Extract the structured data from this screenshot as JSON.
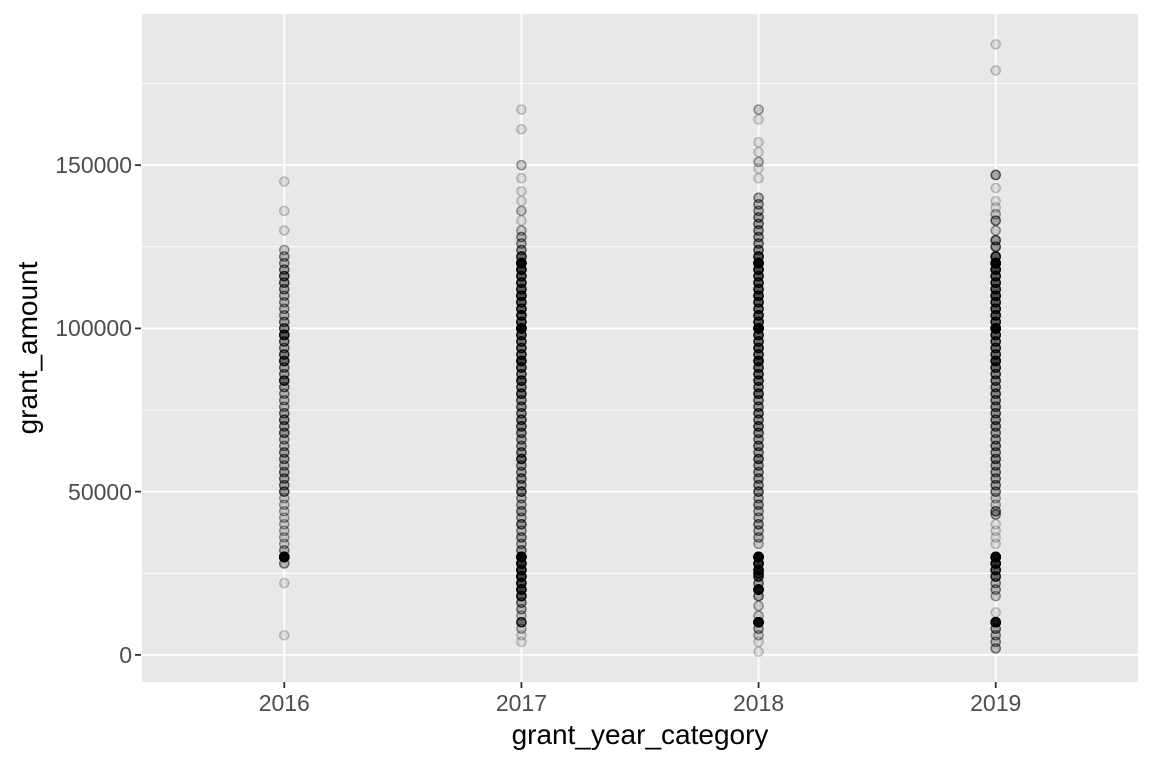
{
  "chart_data": {
    "type": "scatter",
    "subtype": "strip-plot-overplotted",
    "title": "",
    "xlabel": "grant_year_category",
    "ylabel": "grant_amount",
    "categories": [
      "2016",
      "2017",
      "2018",
      "2019"
    ],
    "y_ticks": [
      0,
      50000,
      100000,
      150000
    ],
    "y_tick_labels": [
      "0",
      "50000",
      "100000",
      "150000"
    ],
    "y_minor_ticks": [
      25000,
      75000,
      125000,
      175000
    ],
    "ylim": [
      -8300,
      196300
    ],
    "legend": "none",
    "grid": "on",
    "colors": {
      "panel_background": "#E8E8E8",
      "grid": "#FFFFFF",
      "tick_mark": "#333333",
      "tick_text": "#4D4D4D",
      "axis_title_text": "#000000",
      "point": "#000000"
    },
    "point_style": {
      "radius": 4.6,
      "fill_opacity": 0.09,
      "stroke_opacity": 0.22,
      "stroke_width": 1.4
    },
    "series": [
      {
        "name": "2016",
        "points": [
          [
            145000,
            1
          ],
          [
            136000,
            1
          ],
          [
            130000,
            1
          ],
          [
            124000,
            2
          ],
          [
            122000,
            3
          ],
          [
            120000,
            3
          ],
          [
            118000,
            4
          ],
          [
            116000,
            6
          ],
          [
            114000,
            5
          ],
          [
            112000,
            4
          ],
          [
            110000,
            3
          ],
          [
            108000,
            3
          ],
          [
            106000,
            3
          ],
          [
            104000,
            3
          ],
          [
            102000,
            4
          ],
          [
            100000,
            6
          ],
          [
            98000,
            10
          ],
          [
            96000,
            5
          ],
          [
            94000,
            4
          ],
          [
            92000,
            6
          ],
          [
            90000,
            8
          ],
          [
            88000,
            4
          ],
          [
            86000,
            4
          ],
          [
            84000,
            8
          ],
          [
            82000,
            4
          ],
          [
            80000,
            3
          ],
          [
            78000,
            3
          ],
          [
            76000,
            3
          ],
          [
            74000,
            4
          ],
          [
            72000,
            5
          ],
          [
            70000,
            4
          ],
          [
            68000,
            5
          ],
          [
            66000,
            3
          ],
          [
            64000,
            3
          ],
          [
            62000,
            4
          ],
          [
            60000,
            4
          ],
          [
            58000,
            3
          ],
          [
            56000,
            4
          ],
          [
            54000,
            4
          ],
          [
            52000,
            4
          ],
          [
            50000,
            5
          ],
          [
            48000,
            2
          ],
          [
            46000,
            2
          ],
          [
            44000,
            2
          ],
          [
            42000,
            2
          ],
          [
            40000,
            2
          ],
          [
            38000,
            2
          ],
          [
            36000,
            2
          ],
          [
            34000,
            2
          ],
          [
            32000,
            3
          ],
          [
            30000,
            30
          ],
          [
            28000,
            3
          ],
          [
            22000,
            1
          ],
          [
            6000,
            1
          ]
        ]
      },
      {
        "name": "2017",
        "points": [
          [
            167000,
            1
          ],
          [
            161000,
            1
          ],
          [
            150000,
            2
          ],
          [
            146000,
            1
          ],
          [
            142000,
            1
          ],
          [
            139000,
            1
          ],
          [
            136000,
            2
          ],
          [
            133000,
            1
          ],
          [
            130000,
            2
          ],
          [
            128000,
            3
          ],
          [
            126000,
            3
          ],
          [
            124000,
            4
          ],
          [
            122000,
            8
          ],
          [
            120000,
            30
          ],
          [
            118000,
            14
          ],
          [
            116000,
            10
          ],
          [
            114000,
            10
          ],
          [
            112000,
            10
          ],
          [
            110000,
            12
          ],
          [
            108000,
            10
          ],
          [
            106000,
            10
          ],
          [
            104000,
            10
          ],
          [
            102000,
            10
          ],
          [
            100000,
            30
          ],
          [
            98000,
            10
          ],
          [
            96000,
            8
          ],
          [
            94000,
            8
          ],
          [
            92000,
            8
          ],
          [
            90000,
            14
          ],
          [
            88000,
            8
          ],
          [
            86000,
            6
          ],
          [
            84000,
            10
          ],
          [
            82000,
            6
          ],
          [
            80000,
            8
          ],
          [
            78000,
            5
          ],
          [
            76000,
            5
          ],
          [
            74000,
            5
          ],
          [
            72000,
            6
          ],
          [
            70000,
            6
          ],
          [
            68000,
            5
          ],
          [
            66000,
            4
          ],
          [
            64000,
            4
          ],
          [
            62000,
            5
          ],
          [
            60000,
            8
          ],
          [
            58000,
            4
          ],
          [
            56000,
            4
          ],
          [
            54000,
            5
          ],
          [
            52000,
            4
          ],
          [
            50000,
            6
          ],
          [
            48000,
            3
          ],
          [
            46000,
            3
          ],
          [
            44000,
            4
          ],
          [
            42000,
            3
          ],
          [
            40000,
            5
          ],
          [
            38000,
            3
          ],
          [
            36000,
            4
          ],
          [
            34000,
            3
          ],
          [
            32000,
            4
          ],
          [
            30000,
            30
          ],
          [
            28000,
            16
          ],
          [
            26000,
            14
          ],
          [
            24000,
            14
          ],
          [
            22000,
            12
          ],
          [
            20000,
            14
          ],
          [
            18000,
            10
          ],
          [
            16000,
            4
          ],
          [
            14000,
            3
          ],
          [
            12000,
            2
          ],
          [
            10000,
            8
          ],
          [
            8000,
            2
          ],
          [
            6000,
            1
          ],
          [
            4000,
            1
          ]
        ]
      },
      {
        "name": "2018",
        "points": [
          [
            167000,
            2
          ],
          [
            164000,
            1
          ],
          [
            157000,
            1
          ],
          [
            154000,
            1
          ],
          [
            151000,
            2
          ],
          [
            149000,
            1
          ],
          [
            146000,
            1
          ],
          [
            140000,
            3
          ],
          [
            138000,
            3
          ],
          [
            136000,
            3
          ],
          [
            134000,
            4
          ],
          [
            132000,
            4
          ],
          [
            130000,
            4
          ],
          [
            128000,
            4
          ],
          [
            126000,
            4
          ],
          [
            124000,
            5
          ],
          [
            122000,
            10
          ],
          [
            120000,
            30
          ],
          [
            118000,
            12
          ],
          [
            116000,
            10
          ],
          [
            114000,
            10
          ],
          [
            112000,
            10
          ],
          [
            110000,
            12
          ],
          [
            108000,
            10
          ],
          [
            106000,
            8
          ],
          [
            104000,
            10
          ],
          [
            102000,
            10
          ],
          [
            100000,
            30
          ],
          [
            98000,
            10
          ],
          [
            96000,
            8
          ],
          [
            94000,
            10
          ],
          [
            92000,
            8
          ],
          [
            90000,
            14
          ],
          [
            88000,
            8
          ],
          [
            86000,
            8
          ],
          [
            84000,
            8
          ],
          [
            82000,
            6
          ],
          [
            80000,
            8
          ],
          [
            78000,
            5
          ],
          [
            76000,
            5
          ],
          [
            74000,
            6
          ],
          [
            72000,
            5
          ],
          [
            70000,
            6
          ],
          [
            68000,
            5
          ],
          [
            66000,
            4
          ],
          [
            64000,
            5
          ],
          [
            62000,
            4
          ],
          [
            60000,
            6
          ],
          [
            58000,
            4
          ],
          [
            56000,
            4
          ],
          [
            54000,
            4
          ],
          [
            52000,
            4
          ],
          [
            50000,
            5
          ],
          [
            48000,
            3
          ],
          [
            46000,
            4
          ],
          [
            44000,
            3
          ],
          [
            42000,
            3
          ],
          [
            40000,
            4
          ],
          [
            38000,
            3
          ],
          [
            36000,
            3
          ],
          [
            34000,
            2
          ],
          [
            30000,
            30
          ],
          [
            28000,
            16
          ],
          [
            26000,
            12
          ],
          [
            25000,
            10
          ],
          [
            24000,
            8
          ],
          [
            22000,
            4
          ],
          [
            20000,
            25
          ],
          [
            18000,
            4
          ],
          [
            15000,
            2
          ],
          [
            12000,
            2
          ],
          [
            10000,
            28
          ],
          [
            8000,
            3
          ],
          [
            6000,
            2
          ],
          [
            4000,
            1
          ],
          [
            1000,
            1
          ]
        ]
      },
      {
        "name": "2019",
        "points": [
          [
            187000,
            1
          ],
          [
            179000,
            1
          ],
          [
            147000,
            4
          ],
          [
            143000,
            1
          ],
          [
            139000,
            1
          ],
          [
            137000,
            1
          ],
          [
            135000,
            2
          ],
          [
            133000,
            4
          ],
          [
            130000,
            2
          ],
          [
            127000,
            5
          ],
          [
            125000,
            5
          ],
          [
            122000,
            10
          ],
          [
            120000,
            30
          ],
          [
            118000,
            14
          ],
          [
            116000,
            10
          ],
          [
            114000,
            10
          ],
          [
            112000,
            10
          ],
          [
            110000,
            12
          ],
          [
            108000,
            10
          ],
          [
            106000,
            10
          ],
          [
            104000,
            10
          ],
          [
            102000,
            10
          ],
          [
            100000,
            30
          ],
          [
            98000,
            10
          ],
          [
            96000,
            8
          ],
          [
            94000,
            8
          ],
          [
            92000,
            8
          ],
          [
            90000,
            14
          ],
          [
            88000,
            8
          ],
          [
            86000,
            6
          ],
          [
            84000,
            6
          ],
          [
            82000,
            5
          ],
          [
            80000,
            6
          ],
          [
            78000,
            5
          ],
          [
            76000,
            5
          ],
          [
            74000,
            5
          ],
          [
            72000,
            5
          ],
          [
            70000,
            5
          ],
          [
            68000,
            4
          ],
          [
            66000,
            4
          ],
          [
            64000,
            5
          ],
          [
            62000,
            4
          ],
          [
            60000,
            5
          ],
          [
            58000,
            4
          ],
          [
            56000,
            4
          ],
          [
            54000,
            4
          ],
          [
            52000,
            4
          ],
          [
            50000,
            4
          ],
          [
            48000,
            2
          ],
          [
            46000,
            2
          ],
          [
            44000,
            4
          ],
          [
            43000,
            3
          ],
          [
            40000,
            1
          ],
          [
            38000,
            1
          ],
          [
            36000,
            1
          ],
          [
            34000,
            1
          ],
          [
            30000,
            30
          ],
          [
            28000,
            16
          ],
          [
            26000,
            10
          ],
          [
            24000,
            8
          ],
          [
            22000,
            3
          ],
          [
            20000,
            3
          ],
          [
            18000,
            2
          ],
          [
            13000,
            1
          ],
          [
            10000,
            25
          ],
          [
            8000,
            4
          ],
          [
            6000,
            3
          ],
          [
            4000,
            3
          ],
          [
            2000,
            3
          ]
        ]
      }
    ]
  }
}
